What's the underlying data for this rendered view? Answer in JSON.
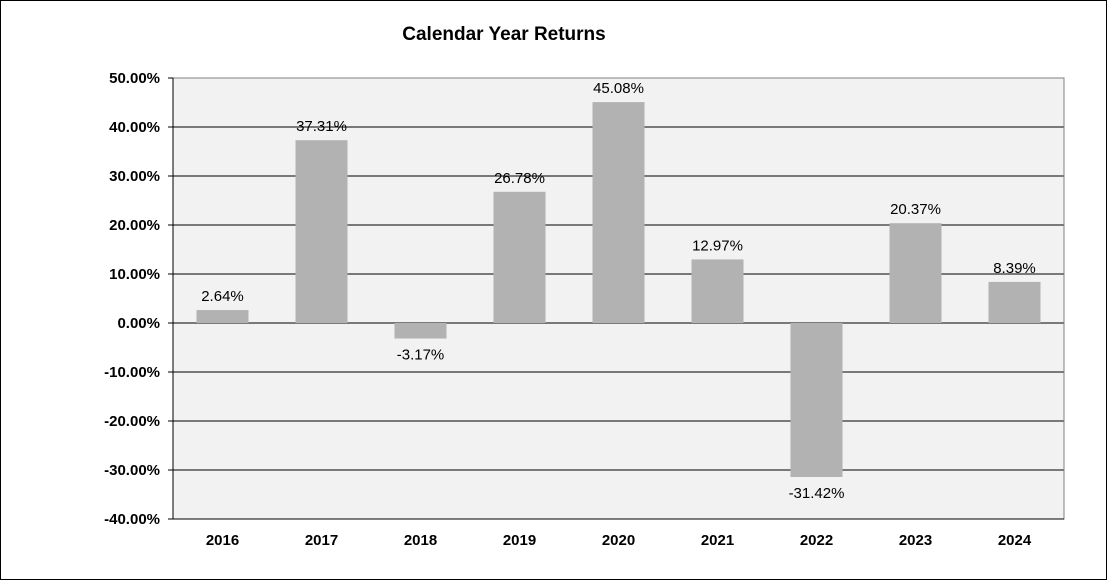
{
  "chart_data": {
    "type": "bar",
    "title": "Calendar Year Returns",
    "xlabel": "",
    "ylabel": "",
    "categories": [
      "2016",
      "2017",
      "2018",
      "2019",
      "2020",
      "2021",
      "2022",
      "2023",
      "2024"
    ],
    "values": [
      2.64,
      37.31,
      -3.17,
      26.78,
      45.08,
      12.97,
      -31.42,
      20.37,
      8.39
    ],
    "value_labels": [
      "2.64%",
      "37.31%",
      "-3.17%",
      "26.78%",
      "45.08%",
      "12.97%",
      "-31.42%",
      "20.37%",
      "8.39%"
    ],
    "ylim": [
      -40,
      50
    ],
    "yticks": [
      50,
      40,
      30,
      20,
      10,
      0,
      -10,
      -20,
      -30,
      -40
    ],
    "ytick_labels": [
      "50.00%",
      "40.00%",
      "30.00%",
      "20.00%",
      "10.00%",
      "0.00%",
      "-10.00%",
      "-20.00%",
      "-30.00%",
      "-40.00%"
    ],
    "grid": true,
    "legend": "none",
    "colors": {
      "bar": "#b2b2b2",
      "plot_background": "#f2f2f2",
      "gridline": "#000000",
      "frame": "#000000"
    }
  }
}
